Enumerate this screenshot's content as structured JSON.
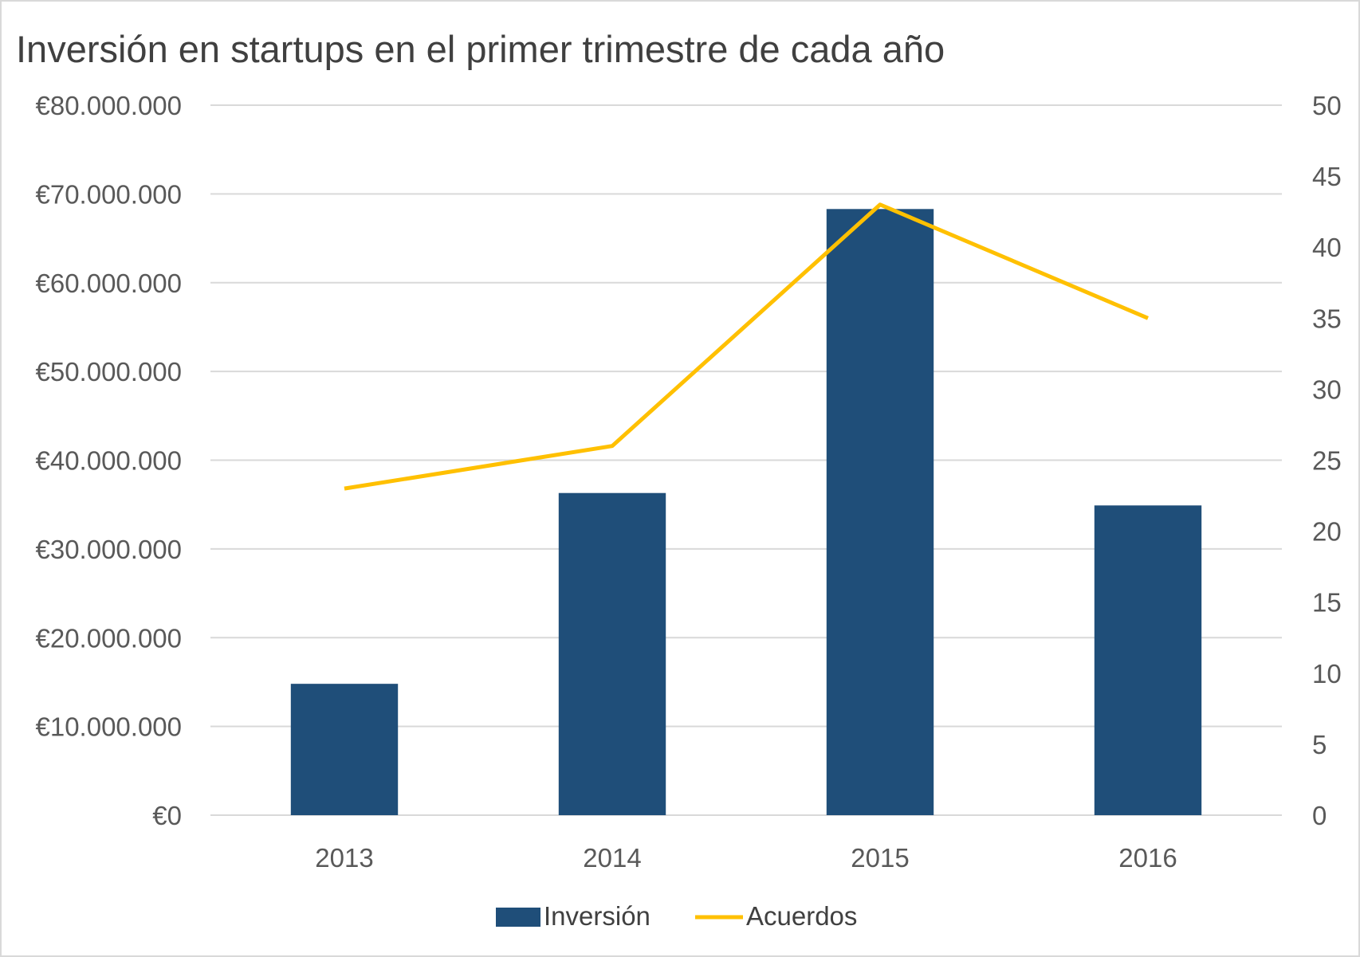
{
  "chart_data": {
    "type": "bar+line",
    "title": "Inversión en startups en el primer trimestre de cada año",
    "categories": [
      "2013",
      "2014",
      "2015",
      "2016"
    ],
    "series": [
      {
        "name": "Inversión",
        "type": "bar",
        "axis": "left",
        "color": "#1F4E79",
        "values": [
          14800000,
          36300000,
          68300000,
          34900000
        ]
      },
      {
        "name": "Acuerdos",
        "type": "line",
        "axis": "right",
        "color": "#FFC000",
        "values": [
          23,
          26,
          43,
          35
        ]
      }
    ],
    "y_left": {
      "ylim": [
        0,
        80000000
      ],
      "ticks": [
        "€0",
        "€10.000.000",
        "€20.000.000",
        "€30.000.000",
        "€40.000.000",
        "€50.000.000",
        "€60.000.000",
        "€70.000.000",
        "€80.000.000"
      ]
    },
    "y_right": {
      "ylim": [
        0,
        50
      ],
      "ticks": [
        "0",
        "5",
        "10",
        "15",
        "20",
        "25",
        "30",
        "35",
        "40",
        "45",
        "50"
      ]
    },
    "grid": true,
    "legend": "bottom",
    "xlabel": "",
    "ylabel": ""
  }
}
